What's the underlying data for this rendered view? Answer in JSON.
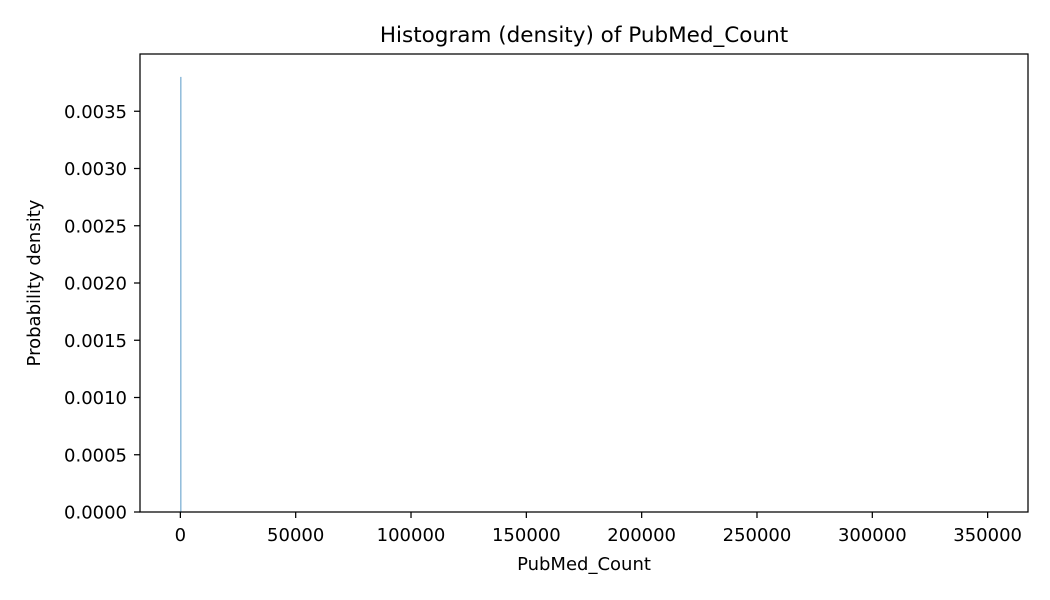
{
  "chart_data": {
    "type": "bar",
    "title": "Histogram (density) of PubMed_Count",
    "xlabel": "PubMed_Count",
    "ylabel": "Probability density",
    "xlim": [
      -17500,
      367500
    ],
    "ylim": [
      0,
      0.004
    ],
    "grid": false,
    "legend": "none",
    "bar_color": "#1f77b4",
    "x_ticks": [
      0,
      50000,
      100000,
      150000,
      200000,
      250000,
      300000,
      350000
    ],
    "x_tick_labels": [
      "0",
      "50000",
      "100000",
      "150000",
      "200000",
      "250000",
      "300000",
      "350000"
    ],
    "y_ticks": [
      0,
      0.0005,
      0.001,
      0.0015,
      0.002,
      0.0025,
      0.003,
      0.0035
    ],
    "y_tick_labels": [
      "0.0000",
      "0.0005",
      "0.0010",
      "0.0015",
      "0.0020",
      "0.0025",
      "0.0030",
      "0.0035"
    ],
    "bins": [
      {
        "x0": 0,
        "x1": 350,
        "density": 0.0038
      }
    ]
  }
}
